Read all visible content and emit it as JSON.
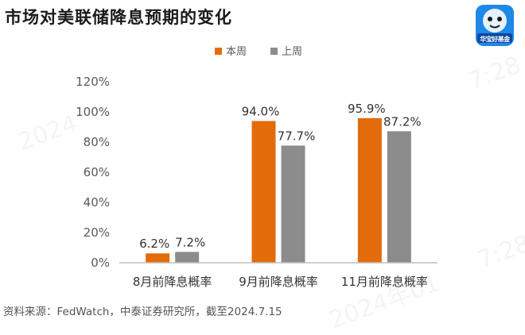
{
  "title": "市场对美联储降息预期的变化",
  "logo": {
    "text": "华宝好基金"
  },
  "source": "资料来源：FedWatch，中泰证券研究所，截至2024.7.15",
  "watermarks": [
    "2024",
    "7:28",
    "7:28",
    "2024年01"
  ],
  "colors": {
    "current": "#E36C0A",
    "previous": "#8C8C8C",
    "axis": "#BFBFBF",
    "text": "#595959"
  },
  "chart_data": {
    "type": "bar",
    "categories": [
      "8月前降息概率",
      "9月前降息概率",
      "11月前降息概率"
    ],
    "series": [
      {
        "name": "本周",
        "values": [
          6.2,
          94.0,
          95.9
        ],
        "labels": [
          "6.2%",
          "94.0%",
          "95.9%"
        ],
        "color": "#E36C0A"
      },
      {
        "name": "上周",
        "values": [
          7.2,
          77.7,
          87.2
        ],
        "labels": [
          "7.2%",
          "77.7%",
          "87.2%"
        ],
        "color": "#8C8C8C"
      }
    ],
    "yticks": [
      "0%",
      "20%",
      "40%",
      "60%",
      "80%",
      "100%",
      "120%"
    ],
    "ylim": [
      0,
      120
    ],
    "ylabel": "",
    "xlabel": "",
    "grid": false,
    "legend": "top-center"
  }
}
